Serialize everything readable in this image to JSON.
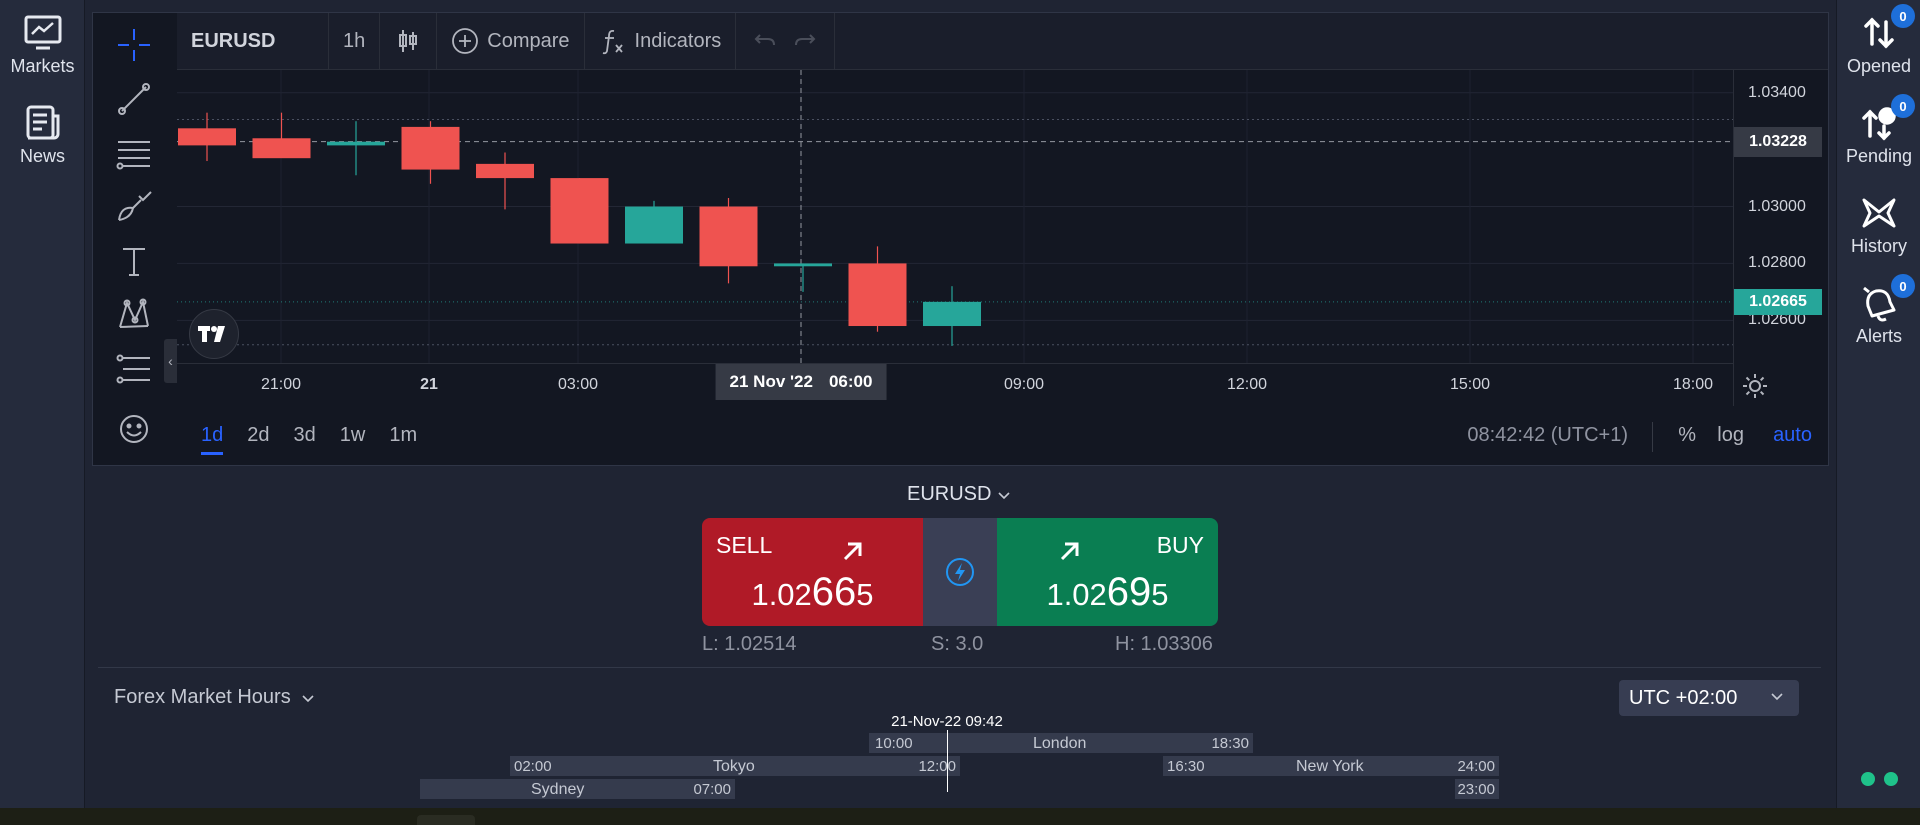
{
  "left_sidebar": {
    "markets_label": "Markets",
    "news_label": "News"
  },
  "right_sidebar": {
    "opened": {
      "label": "Opened",
      "badge": "0"
    },
    "pending": {
      "label": "Pending",
      "badge": "0"
    },
    "history": {
      "label": "History"
    },
    "alerts": {
      "label": "Alerts",
      "badge": "0"
    }
  },
  "toolbar": {
    "symbol": "EURUSD",
    "interval": "1h",
    "compare_label": "Compare",
    "indicators_label": "Indicators"
  },
  "chart_data": {
    "type": "candlestick",
    "symbol": "EURUSD",
    "interval": "1h",
    "x_ticks": [
      "21:00",
      "21",
      "03:00",
      "06:00",
      "09:00",
      "12:00",
      "15:00",
      "18:00"
    ],
    "y_ticks": [
      "1.03400",
      "1.03000",
      "1.02800",
      "1.02600"
    ],
    "ylim": [
      1.0245,
      1.0348
    ],
    "candles": [
      {
        "open": 1.03275,
        "high": 1.0333,
        "low": 1.0316,
        "close": 1.03215
      },
      {
        "open": 1.0324,
        "high": 1.0333,
        "low": 1.0318,
        "close": 1.0317
      },
      {
        "open": 1.03215,
        "high": 1.033,
        "low": 1.0311,
        "close": 1.03228
      },
      {
        "open": 1.0328,
        "high": 1.033,
        "low": 1.0308,
        "close": 1.0313
      },
      {
        "open": 1.0315,
        "high": 1.0319,
        "low": 1.0299,
        "close": 1.031
      },
      {
        "open": 1.031,
        "high": 1.031,
        "low": 1.0287,
        "close": 1.0287
      },
      {
        "open": 1.0287,
        "high": 1.0302,
        "low": 1.0287,
        "close": 1.03
      },
      {
        "open": 1.03,
        "high": 1.0303,
        "low": 1.0273,
        "close": 1.0279
      },
      {
        "open": 1.0279,
        "high": 1.028,
        "low": 1.027,
        "close": 1.028
      },
      {
        "open": 1.028,
        "high": 1.0286,
        "low": 1.0256,
        "close": 1.0258
      },
      {
        "open": 1.0258,
        "high": 1.0272,
        "low": 1.0251,
        "close": 1.02665
      }
    ],
    "current_price_label": "1.03228",
    "last_price_label": "1.02665",
    "up_color": "#26a69a",
    "down_color": "#ef5350",
    "crosshair_date": "21 Nov '22",
    "crosshair_time": "06:00",
    "grid": true
  },
  "range_bar": {
    "ranges": [
      "1d",
      "2d",
      "3d",
      "1w",
      "1m"
    ],
    "active": "1d",
    "clock": "08:42:42 (UTC+1)",
    "percent_label": "%",
    "log_label": "log",
    "auto_label": "auto"
  },
  "trade": {
    "symbol": "EURUSD",
    "sell_label": "SELL",
    "buy_label": "BUY",
    "sell_price_prefix": "1.02",
    "sell_price_big": "66",
    "sell_price_suffix": "5",
    "buy_price_prefix": "1.02",
    "buy_price_big": "69",
    "buy_price_suffix": "5",
    "low": "L: 1.02514",
    "spread": "S: 3.0",
    "high": "H: 1.03306"
  },
  "forex_hours": {
    "title": "Forex Market Hours",
    "timezone": "UTC +02:00",
    "now_label": "21-Nov-22 09:42",
    "sessions": {
      "london": {
        "name": "London",
        "start": "10:00",
        "end": "18:30"
      },
      "tokyo": {
        "name": "Tokyo",
        "start": "02:00",
        "end": "12:00"
      },
      "new_york": {
        "name": "New York",
        "start": "16:30",
        "end": "24:00"
      },
      "sydney": {
        "name": "Sydney",
        "start": "07:00",
        "end": "23:00"
      }
    }
  },
  "icons": {
    "markets": "chart-monitor-icon",
    "news": "newspaper-icon",
    "opened": "up-down-arrows-icon",
    "pending": "pending-icon",
    "history": "hourglass-icon",
    "alerts": "alarm-bell-icon",
    "quick_trade": "lightning-icon"
  }
}
